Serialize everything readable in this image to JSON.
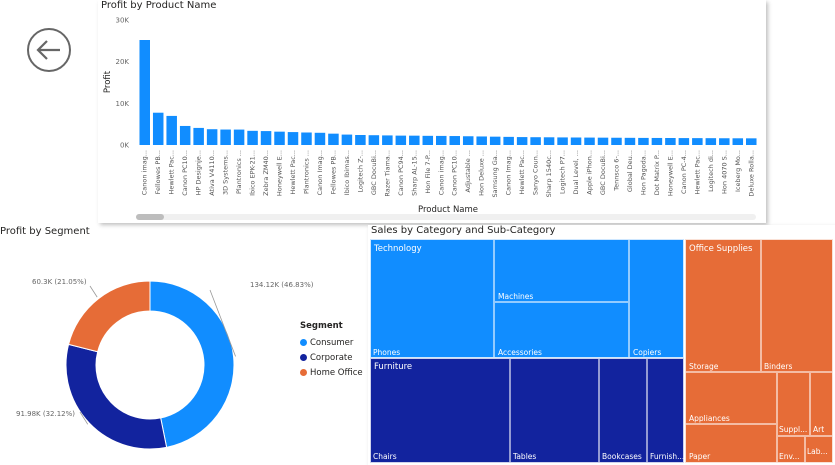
{
  "colors": {
    "accent": "#118DFF",
    "corporate": "#12239E",
    "home_office": "#E66C37"
  },
  "back_icon": "arrow-left-circle-icon",
  "profit_by_product": {
    "title": "Profit by Product Name",
    "chart_data": {
      "type": "bar",
      "xlabel": "Product Name",
      "ylabel": "Profit",
      "yticks": [
        "30K",
        "20K",
        "10K",
        "0K"
      ],
      "ylim": [
        0,
        30000
      ],
      "categories": [
        "Canon imag...",
        "Fellowes PB...",
        "Hewlett Pac...",
        "Canon PC10...",
        "HP Designje...",
        "Ativa V4110...",
        "3D Systems...",
        "Plantronics ...",
        "Ibico EPK-21...",
        "Zebra ZM40...",
        "Honeywell E...",
        "Hewlett Pac...",
        "Plantronics ...",
        "Canon Imag...",
        "Fellowes PB...",
        "Ibico Ibimas...",
        "Logitech Z-...",
        "GBC DocuBi...",
        "Razer Tiama...",
        "Canon PC94...",
        "Sharp AL-15...",
        "Hon File 7-P...",
        "Canon imag...",
        "Canon PC10...",
        "Adjustable ...",
        "Hon Deluxe ...",
        "Samsung Ga...",
        "Canon Imag...",
        "Hewlett Pac...",
        "Sanyo Coun...",
        "Sharp 1540c...",
        "Logitech P7...",
        "Dual Level, ...",
        "Apple iPhon...",
        "GBC DocuBi...",
        "Tennsco 6-...",
        "Global Deu...",
        "Hon Pagoda...",
        "Dot Matrix P...",
        "Honeywell E...",
        "Canon PC-4...",
        "Hewlett Pac...",
        "Logitech di...",
        "Hon 4070 S...",
        "Iceberg Mo...",
        "Deluxe Rolla..."
      ],
      "values": [
        25200,
        7750,
        6980,
        4570,
        4100,
        3790,
        3710,
        3700,
        3400,
        3340,
        3200,
        3100,
        3000,
        2930,
        2720,
        2500,
        2400,
        2350,
        2300,
        2250,
        2240,
        2200,
        2180,
        2150,
        2100,
        2050,
        2000,
        1950,
        1900,
        1870,
        1850,
        1820,
        1800,
        1780,
        1760,
        1740,
        1720,
        1700,
        1690,
        1680,
        1660,
        1650,
        1640,
        1620,
        1610,
        1600
      ]
    }
  },
  "profit_by_segment": {
    "title": "Profit by Segment",
    "legend_title": "Segment",
    "chart_data": {
      "type": "pie",
      "series": [
        {
          "name": "Consumer",
          "value": 134.12,
          "label": "134.12K (46.83%)",
          "color": "#118DFF"
        },
        {
          "name": "Corporate",
          "value": 91.98,
          "label": "91.98K (32.12%)",
          "color": "#12239E"
        },
        {
          "name": "Home Office",
          "value": 60.3,
          "label": "60.3K (21.05%)",
          "color": "#E66C37"
        }
      ]
    }
  },
  "sales_treemap": {
    "title": "Sales by Category and Sub-Category",
    "chart_data": {
      "type": "treemap",
      "categories": [
        {
          "name": "Technology",
          "color": "#118DFF",
          "children": [
            "Phones",
            "Machines",
            "Accessories",
            "Copiers"
          ]
        },
        {
          "name": "Furniture",
          "color": "#12239E",
          "children": [
            "Chairs",
            "Tables",
            "Bookcases",
            "Furnish..."
          ]
        },
        {
          "name": "Office Supplies",
          "color": "#E66C37",
          "children": [
            "Storage",
            "Binders",
            "Appliances",
            "Paper",
            "Suppl...",
            "Art",
            "Env...",
            "Lab..."
          ]
        }
      ]
    }
  }
}
